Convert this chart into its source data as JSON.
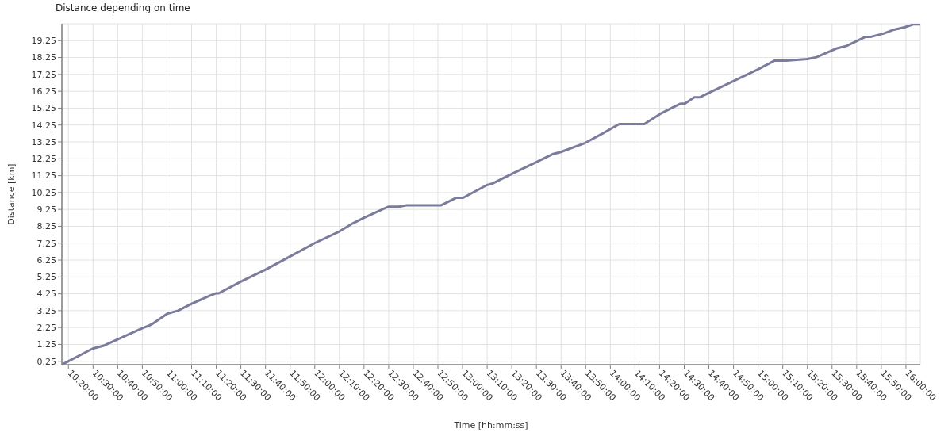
{
  "chart_data": {
    "type": "line",
    "title": "Distance depending on time",
    "xlabel": "Time [hh:mm:ss]",
    "ylabel": "Distance [km]",
    "x": [
      10.289,
      10.497,
      10.577,
      10.666,
      10.835,
      10.879,
      10.906,
      11.0,
      11.075,
      11.167,
      11.288,
      11.333,
      11.35,
      11.501,
      11.67,
      11.834,
      11.999,
      12.168,
      12.257,
      12.337,
      12.408,
      12.497,
      12.568,
      12.621,
      12.853,
      12.959,
      13.004,
      13.164,
      13.199,
      13.333,
      13.501,
      13.608,
      13.661,
      13.83,
      13.948,
      14.06,
      14.23,
      14.337,
      14.47,
      14.506,
      14.568,
      14.604,
      14.675,
      14.835,
      14.995,
      15.11,
      15.19,
      15.333,
      15.395,
      15.528,
      15.599,
      15.724,
      15.759,
      15.848,
      15.919,
      15.99,
      16.053,
      16.097
    ],
    "series": [
      {
        "color": "#7b7b9b",
        "values": [
          0.05,
          1.0,
          1.19,
          1.55,
          2.22,
          2.37,
          2.49,
          3.06,
          3.25,
          3.66,
          4.13,
          4.28,
          4.28,
          4.98,
          5.69,
          6.47,
          7.25,
          7.95,
          8.42,
          8.77,
          9.05,
          9.41,
          9.41,
          9.49,
          9.49,
          9.94,
          9.94,
          10.69,
          10.77,
          11.35,
          12.06,
          12.52,
          12.64,
          13.19,
          13.75,
          14.31,
          14.31,
          14.91,
          15.5,
          15.53,
          15.89,
          15.89,
          16.19,
          16.86,
          17.53,
          18.06,
          18.06,
          18.16,
          18.27,
          18.78,
          18.94,
          19.47,
          19.47,
          19.67,
          19.9,
          20.04,
          20.22,
          20.22
        ]
      }
    ],
    "xlim": [
      10.289,
      16.097
    ],
    "ylim": [
      0.05,
      20.25
    ],
    "xticks": [
      {
        "value": 10.3333,
        "label": "10:20:00"
      },
      {
        "value": 10.5,
        "label": "10:30:00"
      },
      {
        "value": 10.6667,
        "label": "10:40:00"
      },
      {
        "value": 10.8333,
        "label": "10:50:00"
      },
      {
        "value": 11,
        "label": "11:00:00"
      },
      {
        "value": 11.1667,
        "label": "11:10:00"
      },
      {
        "value": 11.3333,
        "label": "11:20:00"
      },
      {
        "value": 11.5,
        "label": "11:30:00"
      },
      {
        "value": 11.6667,
        "label": "11:40:00"
      },
      {
        "value": 11.8333,
        "label": "11:50:00"
      },
      {
        "value": 12,
        "label": "12:00:00"
      },
      {
        "value": 12.1667,
        "label": "12:10:00"
      },
      {
        "value": 12.3333,
        "label": "12:20:00"
      },
      {
        "value": 12.5,
        "label": "12:30:00"
      },
      {
        "value": 12.6667,
        "label": "12:40:00"
      },
      {
        "value": 12.8333,
        "label": "12:50:00"
      },
      {
        "value": 13,
        "label": "13:00:00"
      },
      {
        "value": 13.1667,
        "label": "13:10:00"
      },
      {
        "value": 13.3333,
        "label": "13:20:00"
      },
      {
        "value": 13.5,
        "label": "13:30:00"
      },
      {
        "value": 13.6667,
        "label": "13:40:00"
      },
      {
        "value": 13.8333,
        "label": "13:50:00"
      },
      {
        "value": 14,
        "label": "14:00:00"
      },
      {
        "value": 14.1667,
        "label": "14:10:00"
      },
      {
        "value": 14.3333,
        "label": "14:20:00"
      },
      {
        "value": 14.5,
        "label": "14:30:00"
      },
      {
        "value": 14.6667,
        "label": "14:40:00"
      },
      {
        "value": 14.8333,
        "label": "14:50:00"
      },
      {
        "value": 15,
        "label": "15:00:00"
      },
      {
        "value": 15.1667,
        "label": "15:10:00"
      },
      {
        "value": 15.3333,
        "label": "15:20:00"
      },
      {
        "value": 15.5,
        "label": "15:30:00"
      },
      {
        "value": 15.6667,
        "label": "15:40:00"
      },
      {
        "value": 15.8333,
        "label": "15:50:00"
      },
      {
        "value": 16,
        "label": "16:00:00"
      }
    ],
    "yticks": [
      0.25,
      1.25,
      2.25,
      3.25,
      4.25,
      5.25,
      6.25,
      7.25,
      8.25,
      9.25,
      10.25,
      11.25,
      12.25,
      13.25,
      14.25,
      15.25,
      16.25,
      17.25,
      18.25,
      19.25
    ],
    "grid": true,
    "line_style": "solid"
  }
}
